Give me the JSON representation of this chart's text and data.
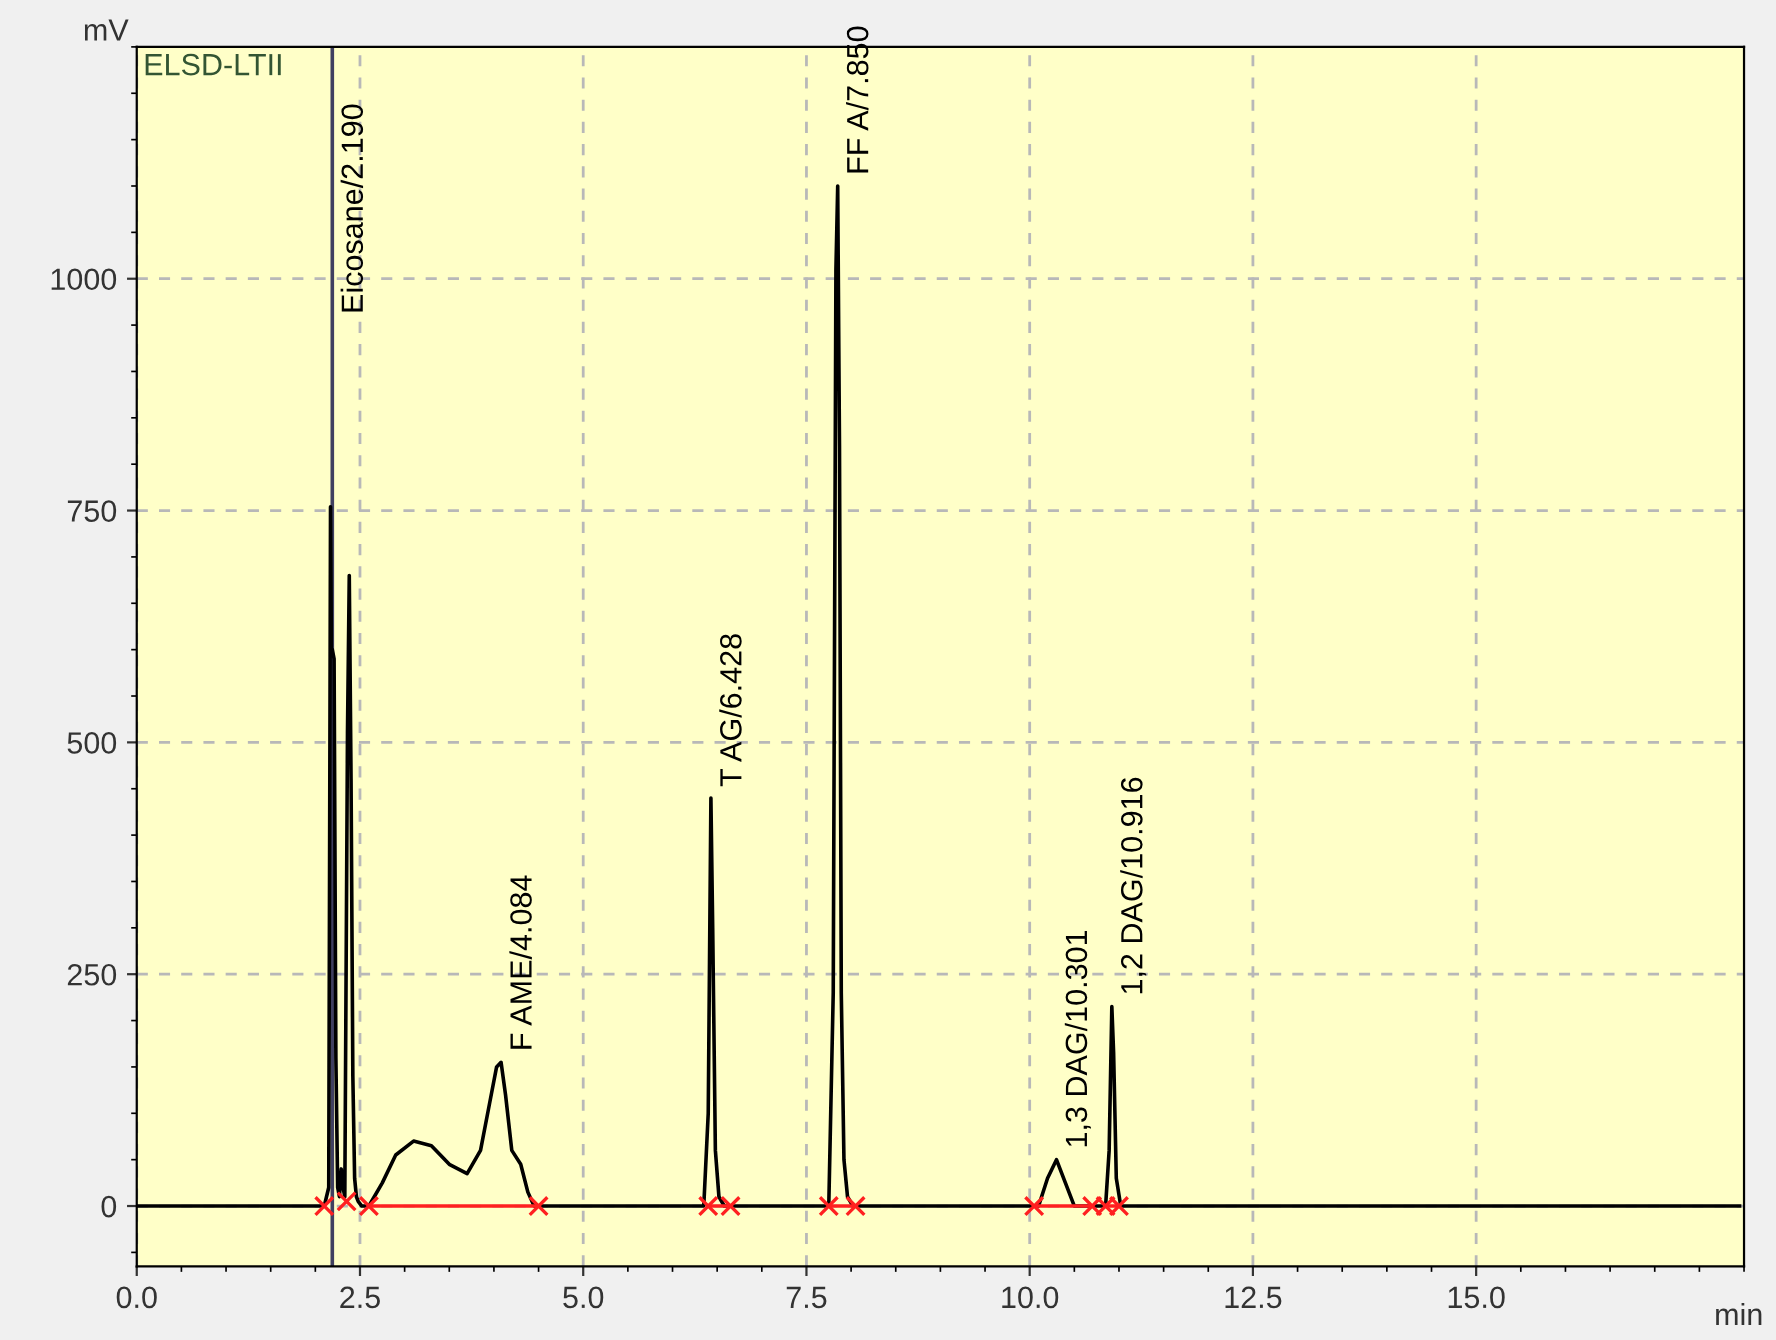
{
  "chart_data": {
    "type": "line",
    "xlabel": "min",
    "ylabel": "mV",
    "xlim": [
      0,
      18
    ],
    "ylim": [
      -65,
      1250
    ],
    "xticks": [
      {
        "value": 0,
        "label": "0.0"
      },
      {
        "value": 2.5,
        "label": "2.5"
      },
      {
        "value": 5,
        "label": "5.0"
      },
      {
        "value": 7.5,
        "label": "7.5"
      },
      {
        "value": 10,
        "label": "10.0"
      },
      {
        "value": 12.5,
        "label": "12.5"
      },
      {
        "value": 15,
        "label": "15.0"
      }
    ],
    "yticks": [
      0,
      250,
      500,
      750,
      1000
    ],
    "grid": true,
    "series": [
      {
        "color": "#000000",
        "x": [
          0,
          2.1,
          2.15,
          2.17,
          2.18,
          2.19,
          2.21,
          2.23,
          2.25,
          2.27,
          2.29,
          2.31,
          2.33,
          2.36,
          2.38,
          2.4,
          2.42,
          2.44,
          2.46,
          2.48,
          2.52,
          2.6,
          2.75,
          2.9,
          3.1,
          3.3,
          3.5,
          3.7,
          3.85,
          3.95,
          4.03,
          4.08,
          4.13,
          4.2,
          4.3,
          4.38,
          4.45,
          6.35,
          6.4,
          6.43,
          6.45,
          6.48,
          6.52,
          6.58,
          7.75,
          7.8,
          7.83,
          7.85,
          7.87,
          7.89,
          7.92,
          7.96,
          8.02,
          10.1,
          10.2,
          10.3,
          10.4,
          10.5,
          10.85,
          10.89,
          10.92,
          10.94,
          10.97,
          11.02,
          17.95
        ],
        "values": [
          0,
          0,
          20,
          754,
          600,
          600,
          590,
          160,
          20,
          10,
          40,
          20,
          10,
          510,
          680,
          460,
          140,
          30,
          10,
          5,
          0,
          0,
          25,
          55,
          70,
          65,
          45,
          35,
          60,
          110,
          150,
          155,
          120,
          60,
          45,
          15,
          0,
          0,
          100,
          440,
          300,
          60,
          10,
          0,
          0,
          230,
          1010,
          1100,
          820,
          230,
          50,
          10,
          0,
          0,
          30,
          50,
          25,
          0,
          0,
          60,
          215,
          165,
          30,
          0,
          0
        ]
      },
      {
        "type": "line",
        "color": "#ff2020",
        "x": [
          2.6,
          4.5
        ],
        "values": [
          0,
          0
        ]
      },
      {
        "type": "line",
        "color": "#ff2020",
        "x": [
          6.4,
          6.65
        ],
        "values": [
          0,
          0
        ]
      },
      {
        "type": "line",
        "color": "#ff2020",
        "x": [
          7.75,
          8.05
        ],
        "values": [
          0,
          0
        ]
      },
      {
        "type": "line",
        "color": "#ff2020",
        "x": [
          10.05,
          10.7
        ],
        "values": [
          0,
          0
        ]
      },
      {
        "type": "line",
        "color": "#ff2020",
        "x": [
          10.85,
          11.0
        ],
        "values": [
          0,
          0
        ]
      },
      {
        "type": "scatter",
        "color": "#ff2020",
        "marker": "cross",
        "x": [
          2.1,
          2.35,
          2.6,
          4.5,
          6.4,
          6.65,
          7.75,
          8.05,
          10.05,
          10.7,
          10.85,
          11.0
        ],
        "values": [
          0,
          5,
          0,
          0,
          0,
          0,
          0,
          0,
          0,
          0,
          0,
          0
        ]
      }
    ],
    "ref_lines": [
      {
        "axis": "x",
        "value": 2.19,
        "color": "#404060"
      }
    ],
    "annotations": [
      "ELSD-LTII",
      {
        "text": "Eicosane/2.190",
        "x": 2.19,
        "y": 950
      },
      {
        "text": "F AME/4.084",
        "x": 4.08,
        "y": 155
      },
      {
        "text": "T AG/6.428",
        "x": 6.43,
        "y": 440
      },
      {
        "text": "FF A/7.850",
        "x": 7.85,
        "y": 1100
      },
      {
        "text": "1,3 DAG/10.301",
        "x": 10.3,
        "y": 50
      },
      {
        "text": "1,2 DAG/10.916",
        "x": 10.92,
        "y": 215
      }
    ]
  }
}
